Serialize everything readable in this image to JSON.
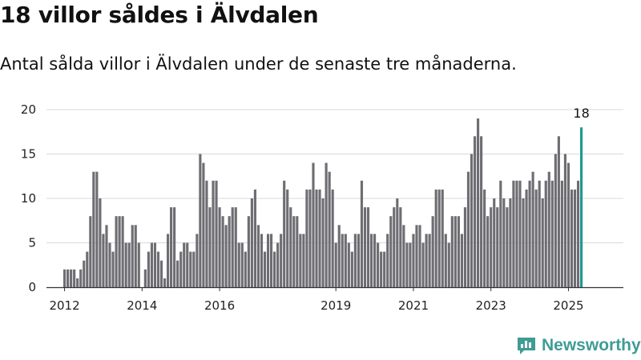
{
  "title": "18 villor såldes i Älvdalen",
  "subtitle": "Antal sålda villor i Älvdalen under de senaste tre månaderna.",
  "brand": {
    "name": "Newsworthy",
    "icon": "bar-chart-icon",
    "color": "#3e9c94"
  },
  "colors": {
    "bar": "#6e6d72",
    "highlight": "#1d9a93",
    "grid": "#d9d9d9",
    "axis": "#333333"
  },
  "chart_data": {
    "type": "bar",
    "grid": true,
    "ylim": [
      0,
      20
    ],
    "yticks": [
      0,
      5,
      10,
      15,
      20
    ],
    "xlim": [
      "2011-11",
      "2026-06"
    ],
    "xticks": [
      "2012",
      "2014",
      "2016",
      "2019",
      "2021",
      "2023",
      "2025"
    ],
    "start_month": "2012-01",
    "last_value_label": "18",
    "values": [
      2,
      2,
      2,
      2,
      1,
      2,
      3,
      4,
      8,
      13,
      13,
      10,
      6,
      7,
      5,
      4,
      8,
      8,
      8,
      5,
      5,
      7,
      7,
      5,
      0,
      2,
      4,
      5,
      5,
      4,
      3,
      1,
      6,
      9,
      9,
      3,
      4,
      5,
      5,
      4,
      4,
      6,
      15,
      14,
      12,
      9,
      12,
      12,
      9,
      8,
      7,
      8,
      9,
      9,
      5,
      5,
      4,
      8,
      10,
      11,
      7,
      6,
      4,
      6,
      6,
      4,
      5,
      6,
      12,
      11,
      9,
      8,
      8,
      6,
      6,
      11,
      11,
      14,
      11,
      11,
      10,
      14,
      13,
      11,
      5,
      7,
      6,
      6,
      5,
      4,
      6,
      6,
      12,
      9,
      9,
      6,
      6,
      5,
      4,
      4,
      6,
      8,
      9,
      10,
      9,
      7,
      5,
      5,
      6,
      7,
      7,
      5,
      6,
      6,
      8,
      11,
      11,
      11,
      6,
      5,
      8,
      8,
      8,
      6,
      9,
      13,
      15,
      17,
      19,
      17,
      11,
      8,
      9,
      10,
      9,
      12,
      10,
      9,
      10,
      12,
      12,
      12,
      10,
      11,
      12,
      13,
      11,
      12,
      10,
      12,
      13,
      12,
      15,
      17,
      12,
      15,
      14,
      11,
      11,
      12,
      18
    ]
  }
}
